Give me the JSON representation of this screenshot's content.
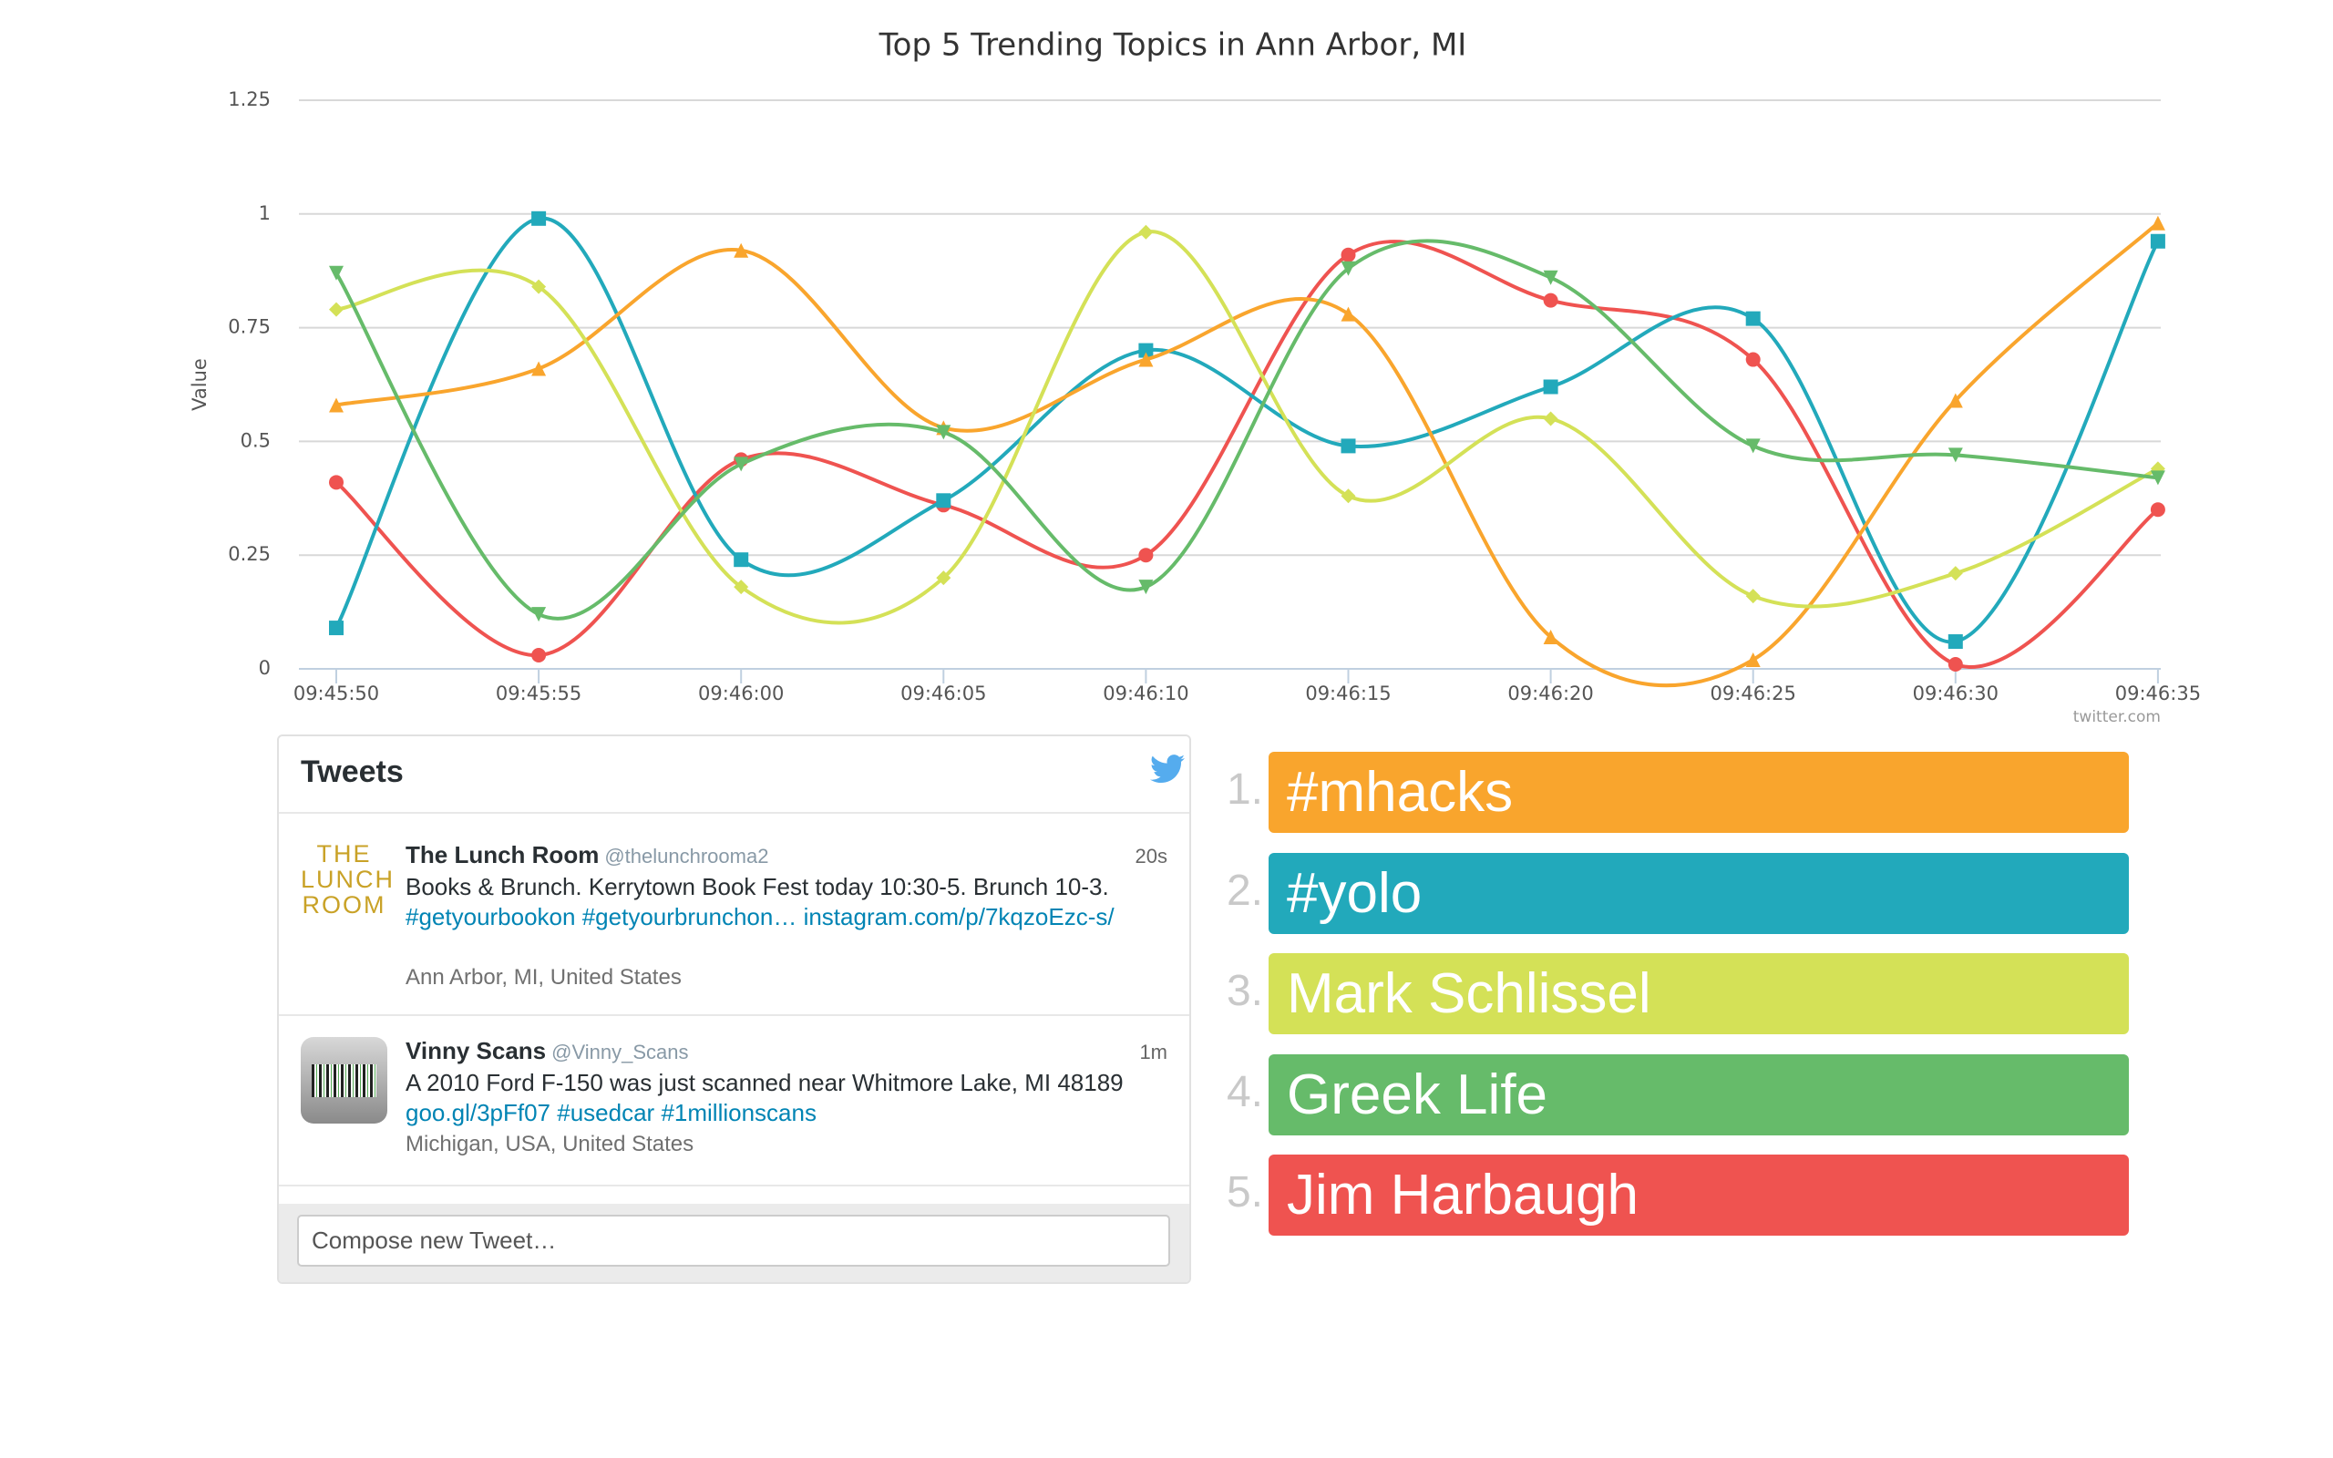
{
  "chart_data": {
    "type": "line",
    "title": "Top 5 Trending Topics in Ann Arbor, MI",
    "y_label": "Value",
    "credits": "twitter.com",
    "categories": [
      "09:45:50",
      "09:45:55",
      "09:46:00",
      "09:46:05",
      "09:46:10",
      "09:46:15",
      "09:46:20",
      "09:46:25",
      "09:46:30",
      "09:46:35"
    ],
    "ylim": [
      0,
      1.25
    ],
    "yticks": [
      0,
      0.25,
      0.5,
      0.75,
      1,
      1.25
    ],
    "grid": true,
    "smooth": true,
    "series": [
      {
        "color": "#ef5350",
        "marker": "circle",
        "values": [
          0.41,
          0.03,
          0.46,
          0.36,
          0.25,
          0.91,
          0.81,
          0.68,
          0.01,
          0.35
        ]
      },
      {
        "color": "#22a9bb",
        "marker": "square",
        "values": [
          0.09,
          0.99,
          0.24,
          0.37,
          0.7,
          0.49,
          0.62,
          0.77,
          0.06,
          0.94
        ]
      },
      {
        "color": "#f9a52d",
        "marker": "triangle",
        "values": [
          0.58,
          0.66,
          0.92,
          0.53,
          0.68,
          0.78,
          0.07,
          0.02,
          0.59,
          0.98
        ]
      },
      {
        "color": "#d4e157",
        "marker": "diamond",
        "values": [
          0.79,
          0.84,
          0.18,
          0.2,
          0.96,
          0.38,
          0.55,
          0.16,
          0.21,
          0.44
        ]
      },
      {
        "color": "#66bb6a",
        "marker": "triangle-down",
        "values": [
          0.87,
          0.12,
          0.45,
          0.52,
          0.18,
          0.88,
          0.86,
          0.49,
          0.47,
          0.42
        ]
      }
    ]
  },
  "tweets": {
    "title": "Tweets",
    "compose": "Compose new Tweet…",
    "items": [
      {
        "avatar": [
          "THE",
          "LUNCH",
          "ROOM"
        ],
        "name": "The Lunch Room",
        "handle": "@thelunchrooma2",
        "time": "20s",
        "parts": [
          {
            "text": "Books & Brunch. Kerrytown Book Fest today 10:30-5. Brunch 10-3."
          },
          {
            "link": "#getyourbookon"
          },
          {
            "link": "#getyourbrunchon…"
          },
          {
            "link": "instagram.com/p/7kqzoEzc-s/"
          }
        ],
        "location": "Ann Arbor, MI, United States"
      },
      {
        "name": "Vinny Scans",
        "handle": "@Vinny_Scans",
        "time": "1m",
        "parts": [
          {
            "text": "A 2010 Ford F-150 was just scanned near Whitmore Lake, MI 48189"
          },
          {
            "link": "goo.gl/3pFf07"
          },
          {
            "link": "#usedcar"
          },
          {
            "link": "#1millionscans"
          }
        ],
        "location": "Michigan, USA, United States"
      }
    ]
  },
  "trending": {
    "items": [
      {
        "rank": "1.",
        "label": "#mhacks",
        "color": "#f9a52d"
      },
      {
        "rank": "2.",
        "label": "#yolo",
        "color": "#22a9bb"
      },
      {
        "rank": "3.",
        "label": "Mark Schlissel",
        "color": "#d4e157"
      },
      {
        "rank": "4.",
        "label": "Greek Life",
        "color": "#66bb6a"
      },
      {
        "rank": "5.",
        "label": "Jim Harbaugh",
        "color": "#ef5350"
      }
    ]
  }
}
